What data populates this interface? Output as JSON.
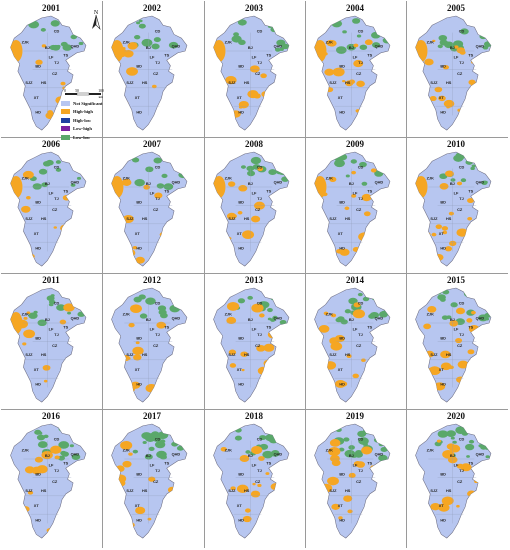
{
  "years": [
    "2001",
    "2002",
    "2003",
    "2004",
    "2005",
    "2006",
    "2007",
    "2008",
    "2009",
    "2010",
    "2011",
    "2012",
    "2013",
    "2014",
    "2015",
    "2016",
    "2017",
    "2018",
    "2019",
    "2020"
  ],
  "map_labels": {
    "ZJK": "ZJK",
    "CD": "CD",
    "QHD": "QHD",
    "BJ": "BJ",
    "TS": "TS",
    "LF": "LF",
    "TJ": "TJ",
    "BD": "BD",
    "CZ": "CZ",
    "SJZ": "SJZ",
    "HS": "HS",
    "XT": "XT",
    "HD": "HD"
  },
  "legend": [
    {
      "label": "Not Significant",
      "color": "#b7c6f0"
    },
    {
      "label": "High-high",
      "color": "#f5a623"
    },
    {
      "label": "High-low",
      "color": "#1f3fa0"
    },
    {
      "label": "Low-high",
      "color": "#7a1fa0"
    },
    {
      "label": "Low-low",
      "color": "#5aa86a"
    }
  ],
  "north_label": "N",
  "scale": {
    "ticks": [
      "0",
      "50",
      "100"
    ],
    "unit": "km"
  },
  "colors": {
    "not_significant": "#b7c6f0",
    "high_high": "#f5a623",
    "low_low": "#5aa86a",
    "border": "#6c6c80"
  }
}
